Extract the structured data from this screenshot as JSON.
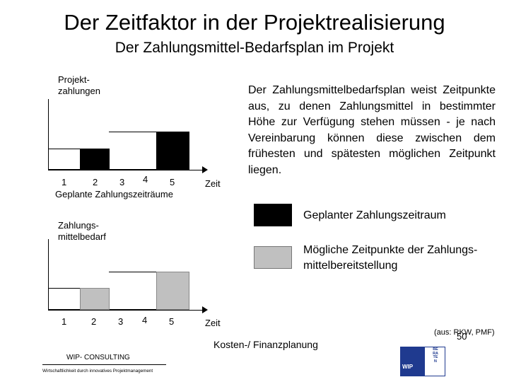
{
  "header": {
    "title": "Der Zeitfaktor in der Projektrealisierung",
    "subtitle": "Der Zahlungsmittel-Bedarfsplan im Projekt"
  },
  "chart_top": {
    "ylabel_line1": "Projekt-",
    "ylabel_line2": "zahlungen",
    "xlabel": "Zeit",
    "ticks": [
      "1",
      "2",
      "3",
      "4",
      "5"
    ],
    "caption": "Geplante Zahlungszeiträume"
  },
  "chart_bottom": {
    "ylabel_line1": "Zahlungs-",
    "ylabel_line2": "mittelbedarf",
    "xlabel": "Zeit",
    "ticks": [
      "1",
      "2",
      "3",
      "4",
      "5"
    ]
  },
  "description": "Der Zahlungsmittelbedarfsplan weist Zeitpunkte aus, zu denen Zahlungsmittel in bestimmter Höhe zur Verfügung stehen müssen - je nach Vereinbarung können diese zwischen dem frühesten und spätesten möglichen Zeitpunkt liegen.",
  "legend": [
    {
      "label": "Geplanter Zahlungszeitraum",
      "color": "#000000"
    },
    {
      "label_line1": "Mögliche Zeitpunkte der Zahlungs-",
      "label_line2": "mittelbereitstellung",
      "color": "#c0c0c0"
    }
  ],
  "source": "(aus: RKW, PMF)",
  "footer": {
    "company": "WIP- CONSULTING",
    "tagline": "Wirtschaftlichkeit durch innovatives Projektmanagement",
    "center": "Kosten-/ Finanzplanung",
    "page_number": "50",
    "logo_text": "WIP",
    "logo_letters": "BERATEN"
  },
  "colors": {
    "planned": "#000000",
    "possible": "#c0c0c0",
    "logo_blue": "#1f3a8f"
  }
}
